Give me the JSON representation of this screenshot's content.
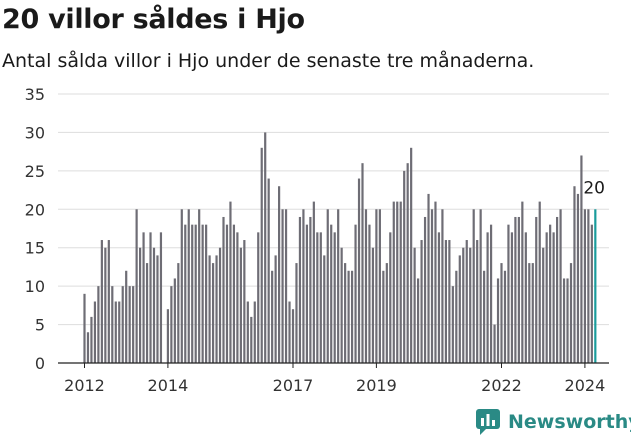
{
  "header": {
    "title": "20 villor såldes i Hjo",
    "subtitle": "Antal sålda villor i Hjo under de senaste tre månaderna."
  },
  "brand": {
    "name": "Newsworthy",
    "icon": "newsworthy-logo-icon",
    "color": "#2a8a85"
  },
  "colors": {
    "bar": "#6e6d75",
    "highlight": "#1a9c9c",
    "grid": "#dddddd",
    "axis": "#222222"
  },
  "chart_data": {
    "type": "bar",
    "title": "20 villor såldes i Hjo",
    "subtitle": "Antal sålda villor i Hjo under de senaste tre månaderna.",
    "xlabel": "",
    "ylabel": "",
    "ylim": [
      0,
      35
    ],
    "y_ticks": [
      0,
      5,
      10,
      15,
      20,
      25,
      30,
      35
    ],
    "x_ticks": [
      "2012",
      "2014",
      "2017",
      "2019",
      "2022",
      "2024"
    ],
    "grid": true,
    "legend": "none",
    "start_month": "2012-01",
    "period": "month",
    "values": [
      9,
      4,
      6,
      8,
      10,
      16,
      15,
      16,
      10,
      8,
      8,
      10,
      12,
      10,
      10,
      20,
      15,
      17,
      13,
      17,
      15,
      14,
      17,
      0,
      7,
      10,
      11,
      13,
      20,
      18,
      20,
      18,
      18,
      20,
      18,
      18,
      14,
      13,
      14,
      15,
      19,
      18,
      21,
      18,
      17,
      15,
      16,
      8,
      6,
      8,
      17,
      28,
      30,
      24,
      12,
      14,
      23,
      20,
      20,
      8,
      7,
      13,
      19,
      20,
      18,
      19,
      21,
      17,
      17,
      14,
      20,
      18,
      17,
      20,
      15,
      13,
      12,
      12,
      18,
      24,
      26,
      20,
      18,
      15,
      20,
      20,
      12,
      13,
      17,
      21,
      21,
      21,
      25,
      26,
      28,
      15,
      11,
      16,
      19,
      22,
      20,
      21,
      17,
      20,
      16,
      16,
      10,
      12,
      14,
      15,
      16,
      15,
      20,
      16,
      20,
      12,
      17,
      18,
      5,
      11,
      13,
      12,
      18,
      17,
      19,
      19,
      21,
      17,
      13,
      13,
      19,
      21,
      15,
      17,
      18,
      17,
      19,
      20,
      11,
      11,
      13,
      23,
      22,
      27,
      20,
      20,
      18,
      20
    ],
    "highlight": {
      "index": 147,
      "label": "20"
    }
  }
}
